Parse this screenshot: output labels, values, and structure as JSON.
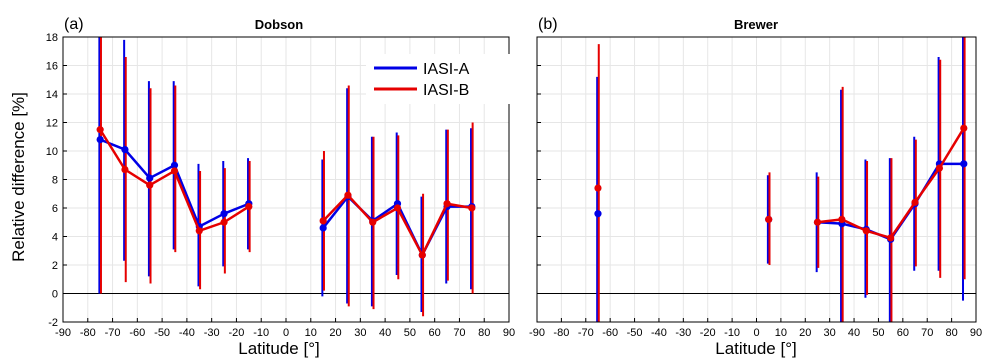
{
  "colors": {
    "series_a": "#0000e6",
    "series_b": "#e60000",
    "zero_line": "#000000",
    "grid": "#e6e6e6"
  },
  "ylabel": "Relative difference [%]",
  "chart_data": [
    {
      "type": "line",
      "panel_label": "(a)",
      "title": "Dobson",
      "xlabel": "Latitude [°]",
      "ylabel": "Relative difference [%]",
      "xlim": [
        -90,
        90
      ],
      "ylim": [
        -2,
        18
      ],
      "xticks": [
        -90,
        -80,
        -70,
        -60,
        -50,
        -40,
        -30,
        -20,
        -10,
        0,
        10,
        20,
        30,
        40,
        50,
        60,
        70,
        80,
        90
      ],
      "yticks": [
        -2,
        0,
        2,
        4,
        6,
        8,
        10,
        12,
        14,
        16,
        18
      ],
      "grid": true,
      "legend": {
        "placement": "top-right",
        "entries": [
          "IASI-A",
          "IASI-B"
        ]
      },
      "series": [
        {
          "name": "IASI-A",
          "color": "#0000e6",
          "segments": [
            [
              {
                "x": -75,
                "y": 10.8,
                "lo": 0.0,
                "hi": 18.0
              },
              {
                "x": -65,
                "y": 10.1,
                "lo": 2.3,
                "hi": 17.8
              },
              {
                "x": -55,
                "y": 8.1,
                "lo": 1.2,
                "hi": 14.9
              },
              {
                "x": -45,
                "y": 9.0,
                "lo": 3.1,
                "hi": 14.9
              },
              {
                "x": -35,
                "y": 4.7,
                "lo": 0.5,
                "hi": 9.1
              },
              {
                "x": -25,
                "y": 5.6,
                "lo": 1.9,
                "hi": 9.3
              },
              {
                "x": -15,
                "y": 6.3,
                "lo": 3.1,
                "hi": 9.5
              }
            ],
            [
              {
                "x": 15,
                "y": 4.6,
                "lo": -0.2,
                "hi": 9.4
              },
              {
                "x": 25,
                "y": 6.8,
                "lo": -0.7,
                "hi": 14.4
              },
              {
                "x": 35,
                "y": 5.1,
                "lo": -0.9,
                "hi": 11.0
              },
              {
                "x": 45,
                "y": 6.3,
                "lo": 1.3,
                "hi": 11.3
              },
              {
                "x": 55,
                "y": 2.7,
                "lo": -1.3,
                "hi": 6.8
              },
              {
                "x": 65,
                "y": 6.1,
                "lo": 0.7,
                "hi": 11.5
              },
              {
                "x": 75,
                "y": 6.1,
                "lo": 0.3,
                "hi": 11.6
              }
            ]
          ]
        },
        {
          "name": "IASI-B",
          "color": "#e60000",
          "segments": [
            [
              {
                "x": -75,
                "y": 11.5,
                "lo": 0.0,
                "hi": 18.0
              },
              {
                "x": -65,
                "y": 8.7,
                "lo": 0.8,
                "hi": 16.6
              },
              {
                "x": -55,
                "y": 7.6,
                "lo": 0.7,
                "hi": 14.4
              },
              {
                "x": -45,
                "y": 8.6,
                "lo": 2.9,
                "hi": 14.6
              },
              {
                "x": -35,
                "y": 4.4,
                "lo": 0.3,
                "hi": 8.6
              },
              {
                "x": -25,
                "y": 5.0,
                "lo": 1.4,
                "hi": 8.8
              },
              {
                "x": -15,
                "y": 6.1,
                "lo": 2.9,
                "hi": 9.3
              }
            ],
            [
              {
                "x": 15,
                "y": 5.1,
                "lo": 0.2,
                "hi": 10.0
              },
              {
                "x": 25,
                "y": 6.9,
                "lo": -0.9,
                "hi": 14.6
              },
              {
                "x": 35,
                "y": 5.0,
                "lo": -1.1,
                "hi": 11.0
              },
              {
                "x": 45,
                "y": 6.0,
                "lo": 1.0,
                "hi": 11.1
              },
              {
                "x": 55,
                "y": 2.7,
                "lo": -1.6,
                "hi": 7.0
              },
              {
                "x": 65,
                "y": 6.3,
                "lo": 0.9,
                "hi": 11.5
              },
              {
                "x": 75,
                "y": 6.0,
                "lo": 0.0,
                "hi": 12.0
              }
            ]
          ]
        }
      ]
    },
    {
      "type": "line",
      "panel_label": "(b)",
      "title": "Brewer",
      "xlabel": "Latitude [°]",
      "xlim": [
        -90,
        90
      ],
      "ylim": [
        -2,
        18
      ],
      "xticks": [
        -90,
        -80,
        -70,
        -60,
        -50,
        -40,
        -30,
        -20,
        -10,
        0,
        10,
        20,
        30,
        40,
        50,
        60,
        70,
        80,
        90
      ],
      "yticks": [
        -2,
        0,
        2,
        4,
        6,
        8,
        10,
        12,
        14,
        16,
        18
      ],
      "grid": true,
      "series": [
        {
          "name": "IASI-A",
          "color": "#0000e6",
          "segments": [
            [
              {
                "x": -65,
                "y": 5.6,
                "lo": -2.0,
                "hi": 15.2
              }
            ],
            [
              {
                "x": 5,
                "y": 5.2,
                "lo": 2.1,
                "hi": 8.3
              }
            ],
            [
              {
                "x": 25,
                "y": 5.0,
                "lo": 1.5,
                "hi": 8.5
              },
              {
                "x": 35,
                "y": 4.9,
                "lo": -2.0,
                "hi": 14.3
              },
              {
                "x": 45,
                "y": 4.5,
                "lo": -0.3,
                "hi": 9.4
              },
              {
                "x": 55,
                "y": 3.8,
                "lo": -2.0,
                "hi": 9.5
              },
              {
                "x": 65,
                "y": 6.3,
                "lo": 1.6,
                "hi": 11.0
              },
              {
                "x": 75,
                "y": 9.1,
                "lo": 1.6,
                "hi": 16.6
              },
              {
                "x": 85,
                "y": 9.1,
                "lo": -0.5,
                "hi": 18.0
              }
            ]
          ]
        },
        {
          "name": "IASI-B",
          "color": "#e60000",
          "segments": [
            [
              {
                "x": -65,
                "y": 7.4,
                "lo": -2.0,
                "hi": 17.5
              }
            ],
            [
              {
                "x": 5,
                "y": 5.2,
                "lo": 2.0,
                "hi": 8.5
              }
            ],
            [
              {
                "x": 25,
                "y": 5.0,
                "lo": 1.8,
                "hi": 8.2
              },
              {
                "x": 35,
                "y": 5.2,
                "lo": -2.0,
                "hi": 14.5
              },
              {
                "x": 45,
                "y": 4.4,
                "lo": -0.1,
                "hi": 9.3
              },
              {
                "x": 55,
                "y": 3.9,
                "lo": -2.0,
                "hi": 9.5
              },
              {
                "x": 65,
                "y": 6.4,
                "lo": 1.9,
                "hi": 10.8
              },
              {
                "x": 75,
                "y": 8.8,
                "lo": 1.1,
                "hi": 16.4
              },
              {
                "x": 85,
                "y": 11.6,
                "lo": 1.0,
                "hi": 18.0
              }
            ]
          ]
        }
      ]
    }
  ]
}
